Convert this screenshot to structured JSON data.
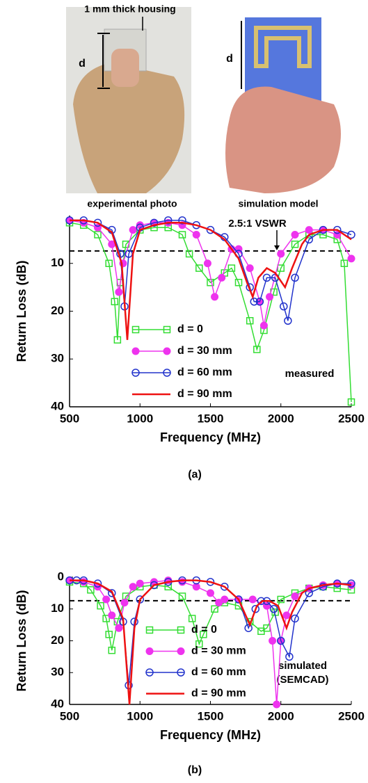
{
  "figure": {
    "photo_labels": {
      "housing": "1 mm thick housing",
      "d_left": "d",
      "d_right": "d",
      "left": "experimental photo",
      "right": "simulation model"
    },
    "captions": [
      "(a)",
      "(b)"
    ]
  },
  "chart_data": [
    {
      "type": "line",
      "xlabel": "Frequency (MHz)",
      "ylabel": "Return Loss (dB)",
      "xlim": [
        500,
        2500
      ],
      "xticks": [
        500,
        1000,
        1500,
        2000,
        2500
      ],
      "ylim": [
        0,
        40
      ],
      "yticks": [
        10,
        20,
        30,
        40
      ],
      "y_inverted": true,
      "reference_line": {
        "value": 7.4,
        "label": "2.5:1 VSWR"
      },
      "annotation": [
        "measured"
      ],
      "series": [
        {
          "name": "d = 0",
          "color": "#33dd33",
          "marker": "square",
          "x": [
            500,
            600,
            700,
            780,
            820,
            840,
            860,
            900,
            1000,
            1100,
            1200,
            1300,
            1350,
            1420,
            1500,
            1600,
            1650,
            1700,
            1780,
            1830,
            1880,
            1950,
            2000,
            2100,
            2200,
            2300,
            2400,
            2450,
            2500
          ],
          "values": [
            1.5,
            2,
            4,
            10,
            18,
            26,
            14,
            6,
            3,
            2.5,
            2.5,
            4,
            8,
            11,
            14,
            12,
            11,
            14,
            22,
            28,
            24,
            16,
            11,
            6,
            4,
            4,
            5,
            10,
            39
          ]
        },
        {
          "name": "d = 30 mm",
          "color": "#ee33ee",
          "marker": "filled-circle",
          "x": [
            500,
            600,
            700,
            800,
            850,
            880,
            950,
            1000,
            1100,
            1200,
            1300,
            1400,
            1480,
            1530,
            1580,
            1650,
            1700,
            1780,
            1850,
            1880,
            1920,
            2000,
            2100,
            2200,
            2300,
            2400,
            2500
          ],
          "values": [
            1,
            1.5,
            2.5,
            6,
            16,
            10,
            3,
            2,
            1.5,
            1.5,
            2,
            4,
            10,
            17,
            13,
            7,
            7,
            11,
            18,
            23,
            17,
            8,
            4,
            3,
            3,
            4,
            9
          ]
        },
        {
          "name": "d = 60 mm",
          "color": "#2233cc",
          "marker": "circle",
          "x": [
            500,
            600,
            700,
            800,
            860,
            890,
            920,
            1000,
            1100,
            1200,
            1300,
            1400,
            1500,
            1600,
            1700,
            1780,
            1810,
            1850,
            1900,
            1960,
            2020,
            2050,
            2100,
            2200,
            2300,
            2400,
            2500
          ],
          "values": [
            1,
            1,
            1.5,
            3,
            8,
            19,
            8,
            2.5,
            1.5,
            1,
            1,
            2,
            3,
            4.5,
            8,
            15,
            18,
            18,
            13,
            13,
            19,
            22,
            13,
            5,
            3,
            3,
            4
          ]
        },
        {
          "name": "d = 90 mm",
          "color": "#ee1111",
          "marker": "none",
          "x": [
            500,
            600,
            700,
            800,
            870,
            910,
            950,
            1000,
            1100,
            1200,
            1300,
            1400,
            1500,
            1600,
            1700,
            1760,
            1800,
            1840,
            1900,
            1960,
            2030,
            2080,
            2150,
            2200,
            2300,
            2400,
            2500
          ],
          "values": [
            1,
            1,
            1.5,
            3.5,
            10,
            26,
            8,
            3,
            2,
            1.5,
            1.5,
            2,
            3,
            5,
            9,
            14,
            17,
            13,
            11,
            12,
            15,
            11,
            6,
            4,
            3,
            3,
            5
          ]
        }
      ]
    },
    {
      "type": "line",
      "xlabel": "Frequency (MHz)",
      "ylabel": "Return Loss (dB)",
      "xlim": [
        500,
        2500
      ],
      "xticks": [
        500,
        1000,
        1500,
        2000,
        2500
      ],
      "ylim": [
        0,
        40
      ],
      "yticks": [
        0,
        10,
        20,
        30,
        40
      ],
      "y_inverted": true,
      "reference_line": {
        "value": 7.4
      },
      "annotation": [
        "simulated",
        "(SEMCAD)"
      ],
      "series": [
        {
          "name": "d = 0",
          "color": "#33dd33",
          "marker": "square",
          "x": [
            500,
            600,
            650,
            720,
            760,
            780,
            800,
            840,
            900,
            1000,
            1100,
            1200,
            1300,
            1370,
            1420,
            1450,
            1530,
            1600,
            1700,
            1780,
            1860,
            1900,
            1960,
            2000,
            2100,
            2200,
            2300,
            2400,
            2500
          ],
          "values": [
            1.5,
            2,
            4,
            9,
            13,
            18,
            23,
            14,
            6,
            3,
            2.5,
            3,
            6,
            13,
            21,
            18,
            10,
            8,
            9,
            14,
            17,
            16,
            11,
            7,
            5,
            3.5,
            3,
            3.5,
            4
          ]
        },
        {
          "name": "d = 30 mm",
          "color": "#ee33ee",
          "marker": "filled-circle",
          "x": [
            500,
            600,
            700,
            760,
            800,
            850,
            890,
            950,
            1000,
            1100,
            1200,
            1300,
            1400,
            1500,
            1560,
            1600,
            1700,
            1800,
            1900,
            1940,
            1970,
            2000,
            2040,
            2100,
            2200,
            2300,
            2400,
            2500
          ],
          "values": [
            1,
            1.5,
            3,
            7,
            12,
            16,
            8,
            3,
            2,
            1.5,
            1,
            1.5,
            3,
            5,
            8,
            7,
            7,
            7,
            9,
            20,
            40,
            20,
            12,
            6,
            3.5,
            2.5,
            2,
            2.5
          ]
        },
        {
          "name": "d = 60 mm",
          "color": "#2233cc",
          "marker": "circle",
          "x": [
            500,
            550,
            600,
            700,
            800,
            880,
            920,
            960,
            1000,
            1100,
            1200,
            1300,
            1400,
            1500,
            1600,
            1700,
            1770,
            1820,
            1860,
            1900,
            1950,
            2000,
            2060,
            2100,
            2200,
            2300,
            2400,
            2500
          ],
          "values": [
            1,
            1,
            1,
            2,
            5,
            14,
            34,
            14,
            7,
            2.5,
            1.5,
            1,
            1,
            1.5,
            3,
            7,
            16,
            10,
            7.5,
            7.5,
            10,
            20,
            25,
            13,
            5,
            3,
            2,
            2
          ]
        },
        {
          "name": "d = 90 mm",
          "color": "#ee1111",
          "marker": "none",
          "x": [
            500,
            600,
            700,
            800,
            880,
            925,
            960,
            1000,
            1100,
            1200,
            1300,
            1400,
            1500,
            1600,
            1700,
            1780,
            1830,
            1870,
            1920,
            1980,
            2040,
            2080,
            2150,
            2200,
            2300,
            2400,
            2500
          ],
          "values": [
            1,
            1,
            2,
            4.5,
            13,
            40,
            16,
            7,
            2.5,
            1.5,
            1,
            1,
            1.5,
            3,
            7,
            15,
            9,
            7.5,
            7.5,
            9,
            16,
            11,
            5,
            3.5,
            2.5,
            2,
            2.5
          ]
        }
      ]
    }
  ]
}
